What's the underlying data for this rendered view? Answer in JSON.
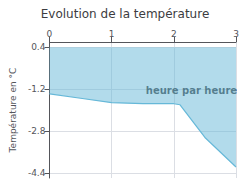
{
  "chart_data": {
    "type": "line",
    "title": "Evolution de la température",
    "ylabel": "Température en °C",
    "x": [
      0,
      0.5,
      1.0,
      1.5,
      2.0,
      2.1,
      2.5,
      3.0
    ],
    "values": [
      -1.38,
      -1.55,
      -1.72,
      -1.76,
      -1.76,
      -1.8,
      -3.05,
      -4.18
    ],
    "fill_to": 0.4,
    "color": "#66b8d8",
    "xlim": [
      0,
      3
    ],
    "xticks": [
      0,
      1,
      2,
      3
    ],
    "ylim": [
      -4.6,
      0.6
    ],
    "yticks": [
      0.4,
      -1.2,
      -2.8,
      -4.4
    ],
    "grid": true,
    "annotations": [
      {
        "text": "heure par heure",
        "x": 1.55,
        "y": -1.05
      }
    ]
  }
}
